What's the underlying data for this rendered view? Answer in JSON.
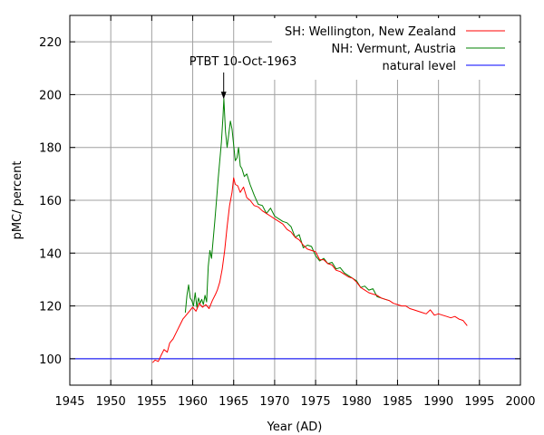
{
  "chart_data": {
    "type": "line",
    "title": "",
    "xlabel": "Year (AD)",
    "ylabel": "pMC/ percent",
    "xlim": [
      1945,
      2000
    ],
    "ylim": [
      90,
      230
    ],
    "xticks": [
      1945,
      1950,
      1955,
      1960,
      1965,
      1970,
      1975,
      1980,
      1985,
      1990,
      1995,
      2000
    ],
    "yticks": [
      100,
      120,
      140,
      160,
      180,
      200,
      220
    ],
    "grid": true,
    "legend_position": "top-right",
    "annotation": {
      "text": "PTBT 10-Oct-1963",
      "x": 1963.78,
      "y": 198
    },
    "series": [
      {
        "name": "SH: Wellington, New Zealand",
        "color": "#ff0000",
        "x": [
          1955.1,
          1955.4,
          1955.8,
          1956.1,
          1956.5,
          1956.9,
          1957.2,
          1957.6,
          1958.0,
          1958.4,
          1958.8,
          1959.2,
          1959.6,
          1960.0,
          1960.4,
          1960.8,
          1961.2,
          1961.6,
          1962.0,
          1962.4,
          1962.8,
          1963.0,
          1963.3,
          1963.6,
          1963.9,
          1964.2,
          1964.5,
          1964.8,
          1965.0,
          1965.2,
          1965.5,
          1965.8,
          1966.2,
          1966.6,
          1967.0,
          1967.5,
          1968.0,
          1968.5,
          1969.0,
          1969.5,
          1970.0,
          1970.5,
          1971.0,
          1971.5,
          1972.0,
          1972.5,
          1973.0,
          1973.5,
          1974.0,
          1974.5,
          1975.0,
          1975.5,
          1976.0,
          1976.5,
          1977.0,
          1977.5,
          1978.0,
          1978.5,
          1979.0,
          1979.5,
          1980.0,
          1980.5,
          1981.0,
          1981.5,
          1982.0,
          1982.5,
          1983.0,
          1983.5,
          1984.0,
          1984.5,
          1985.0,
          1985.5,
          1986.0,
          1986.5,
          1987.0,
          1987.5,
          1988.0,
          1988.5,
          1989.0,
          1989.5,
          1990.0,
          1990.5,
          1991.0,
          1991.5,
          1992.0,
          1992.5,
          1993.0,
          1993.5
        ],
        "values": [
          98.5,
          99.5,
          99.0,
          101.0,
          103.5,
          102.5,
          106.0,
          107.5,
          110.0,
          112.5,
          115.0,
          116.5,
          118.0,
          119.5,
          118.0,
          121.0,
          119.5,
          120.5,
          119.0,
          122.0,
          124.5,
          126.0,
          129.0,
          134.0,
          141.0,
          150.0,
          158.0,
          163.0,
          168.5,
          166.0,
          165.5,
          163.0,
          165.0,
          161.0,
          160.0,
          158.0,
          157.5,
          156.0,
          155.0,
          154.0,
          153.0,
          152.0,
          151.0,
          149.0,
          148.0,
          146.0,
          145.0,
          143.0,
          141.5,
          141.0,
          140.5,
          137.5,
          137.5,
          136.0,
          135.5,
          133.5,
          133.0,
          132.0,
          131.0,
          130.5,
          129.0,
          127.0,
          126.0,
          125.0,
          124.5,
          124.0,
          123.0,
          122.5,
          122.0,
          121.0,
          120.5,
          120.0,
          120.0,
          119.0,
          118.5,
          118.0,
          117.5,
          117.0,
          118.5,
          116.5,
          117.0,
          116.5,
          116.0,
          115.5,
          116.0,
          115.0,
          114.5,
          112.5
        ]
      },
      {
        "name": "NH: Vermunt, Austria",
        "color": "#008000",
        "x": [
          1959.1,
          1959.3,
          1959.5,
          1959.7,
          1959.9,
          1960.1,
          1960.3,
          1960.5,
          1960.7,
          1960.9,
          1961.1,
          1961.3,
          1961.5,
          1961.7,
          1961.9,
          1962.1,
          1962.3,
          1962.5,
          1962.7,
          1962.9,
          1963.1,
          1963.3,
          1963.5,
          1963.7,
          1963.8,
          1964.0,
          1964.2,
          1964.4,
          1964.6,
          1964.8,
          1965.0,
          1965.2,
          1965.4,
          1965.6,
          1965.8,
          1966.0,
          1966.3,
          1966.6,
          1967.0,
          1967.5,
          1968.0,
          1968.5,
          1969.0,
          1969.5,
          1970.0,
          1970.5,
          1971.0,
          1971.5,
          1972.0,
          1972.5,
          1973.0,
          1973.5,
          1974.0,
          1974.5,
          1975.0,
          1975.5,
          1976.0,
          1976.5,
          1977.0,
          1977.5,
          1978.0,
          1978.5,
          1979.0,
          1979.5,
          1980.0,
          1980.5,
          1981.0,
          1981.5,
          1982.0,
          1982.5,
          1983.0,
          1983.5,
          1984.0
        ],
        "values": [
          117.5,
          124.0,
          128.0,
          123.0,
          122.0,
          120.0,
          125.0,
          119.5,
          123.0,
          121.0,
          122.5,
          120.5,
          124.0,
          121.5,
          135.0,
          141.0,
          138.0,
          145.0,
          152.0,
          160.0,
          168.0,
          175.0,
          182.0,
          192.0,
          198.5,
          186.0,
          180.0,
          185.0,
          190.0,
          187.0,
          181.0,
          175.0,
          176.0,
          180.0,
          173.0,
          172.0,
          169.0,
          170.0,
          166.0,
          162.0,
          158.5,
          158.0,
          155.0,
          157.0,
          154.0,
          153.0,
          152.0,
          151.5,
          150.0,
          146.0,
          147.0,
          142.0,
          143.0,
          142.5,
          139.0,
          137.0,
          138.0,
          136.0,
          136.5,
          134.0,
          134.5,
          132.5,
          131.5,
          130.5,
          129.5,
          127.0,
          127.5,
          126.0,
          126.5,
          123.5,
          123.0,
          122.5,
          122.0
        ]
      },
      {
        "name": "natural level",
        "color": "#0000ff",
        "x": [
          1945,
          2000
        ],
        "values": [
          100,
          100
        ]
      }
    ]
  }
}
